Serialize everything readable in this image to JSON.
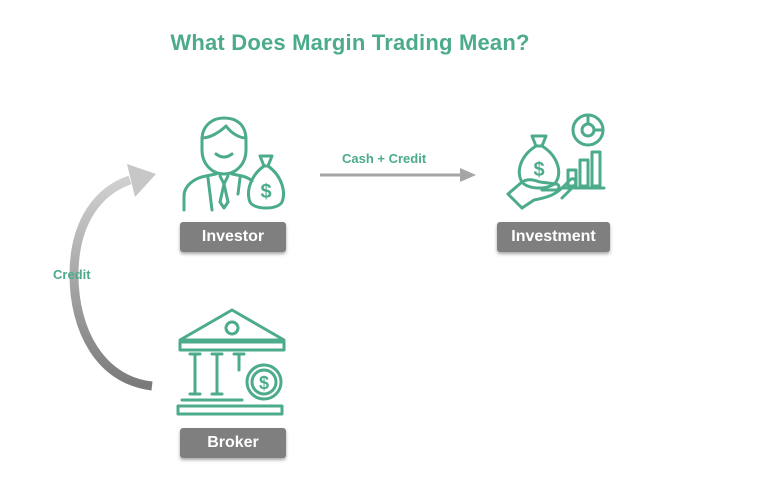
{
  "title": "What Does Margin Trading Mean?",
  "colors": {
    "accent": "#4bab8a",
    "label_bg": "#7f7f7f",
    "arrow_gray": "#a6a6a6"
  },
  "nodes": {
    "investor": {
      "label": "Investor",
      "icon": "investor-with-money-bag-icon"
    },
    "investment": {
      "label": "Investment",
      "icon": "hand-money-bag-chart-icon"
    },
    "broker": {
      "label": "Broker",
      "icon": "bank-building-dollar-icon"
    }
  },
  "edges": {
    "investor_to_investment": {
      "label": "Cash + Credit"
    },
    "broker_to_investor": {
      "label": "Credit"
    }
  }
}
